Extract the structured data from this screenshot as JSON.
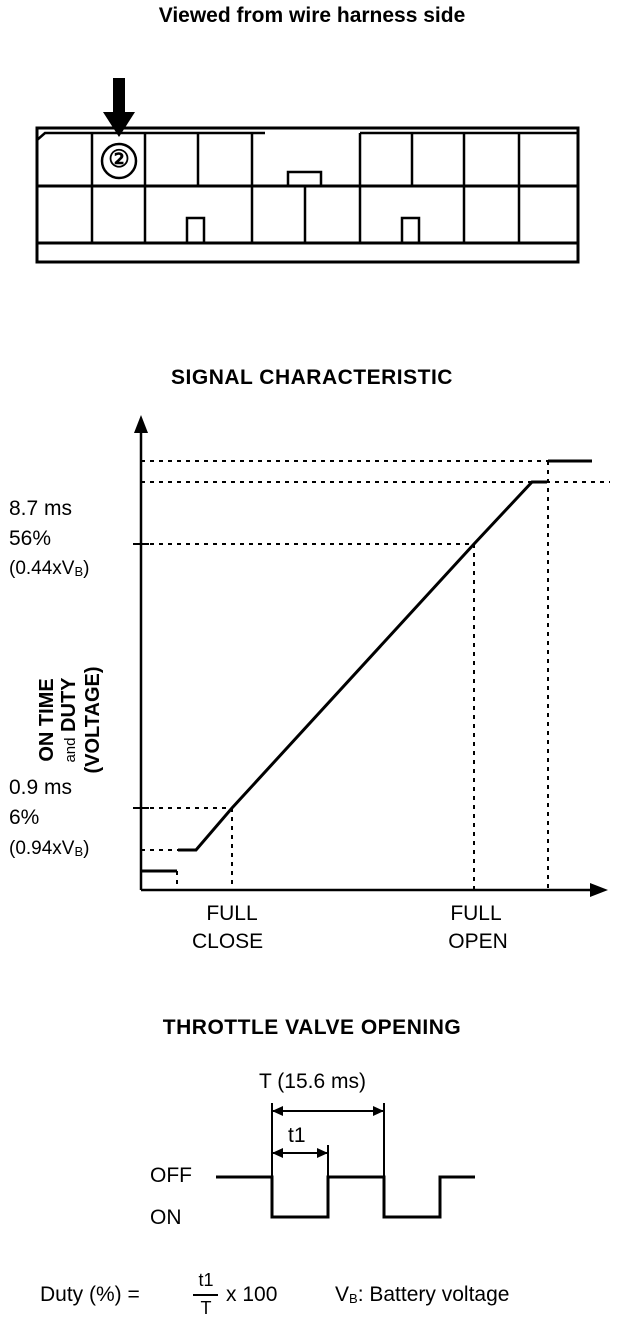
{
  "header": {
    "title": "Viewed from wire harness side"
  },
  "connector": {
    "pin_label": "②"
  },
  "chart_data": {
    "type": "line",
    "title": "SIGNAL CHARACTERISTIC",
    "xlabel": "THROTTLE VALVE OPENING",
    "ylabel_line1": "ON TIME",
    "ylabel_and": "and",
    "ylabel_line2": "DUTY",
    "ylabel_line3": "(VOLTAGE)",
    "x_ticks": [
      {
        "line1": "FULL",
        "line2": "CLOSE"
      },
      {
        "line1": "FULL",
        "line2": "OPEN"
      }
    ],
    "y_high": {
      "time": "8.7 ms",
      "duty": "56%",
      "volt": "(0.44xV",
      "volt_sub": "B",
      "volt_end": ")"
    },
    "y_low": {
      "time": "0.9 ms",
      "duty": "6%",
      "volt": "(0.94xV",
      "volt_sub": "B",
      "volt_end": ")"
    },
    "series": [
      {
        "points": [
          {
            "x": "below FULL CLOSE",
            "y_ms": 0.9
          },
          {
            "x": "FULL CLOSE",
            "y_ms": 0.9
          },
          {
            "x": "FULL OPEN",
            "y_ms": 8.7
          },
          {
            "x": "above FULL OPEN",
            "y_ms": 8.7
          }
        ]
      }
    ]
  },
  "pulse": {
    "period_label": "T (15.6 ms)",
    "t1_label": "t1",
    "off_label": "OFF",
    "on_label": "ON"
  },
  "formula": {
    "lhs": "Duty (%) =",
    "numerator": "t1",
    "denominator": "T",
    "rhs": "x 100",
    "vb_label": "V",
    "vb_sub": "B",
    "vb_desc": ": Battery voltage"
  }
}
